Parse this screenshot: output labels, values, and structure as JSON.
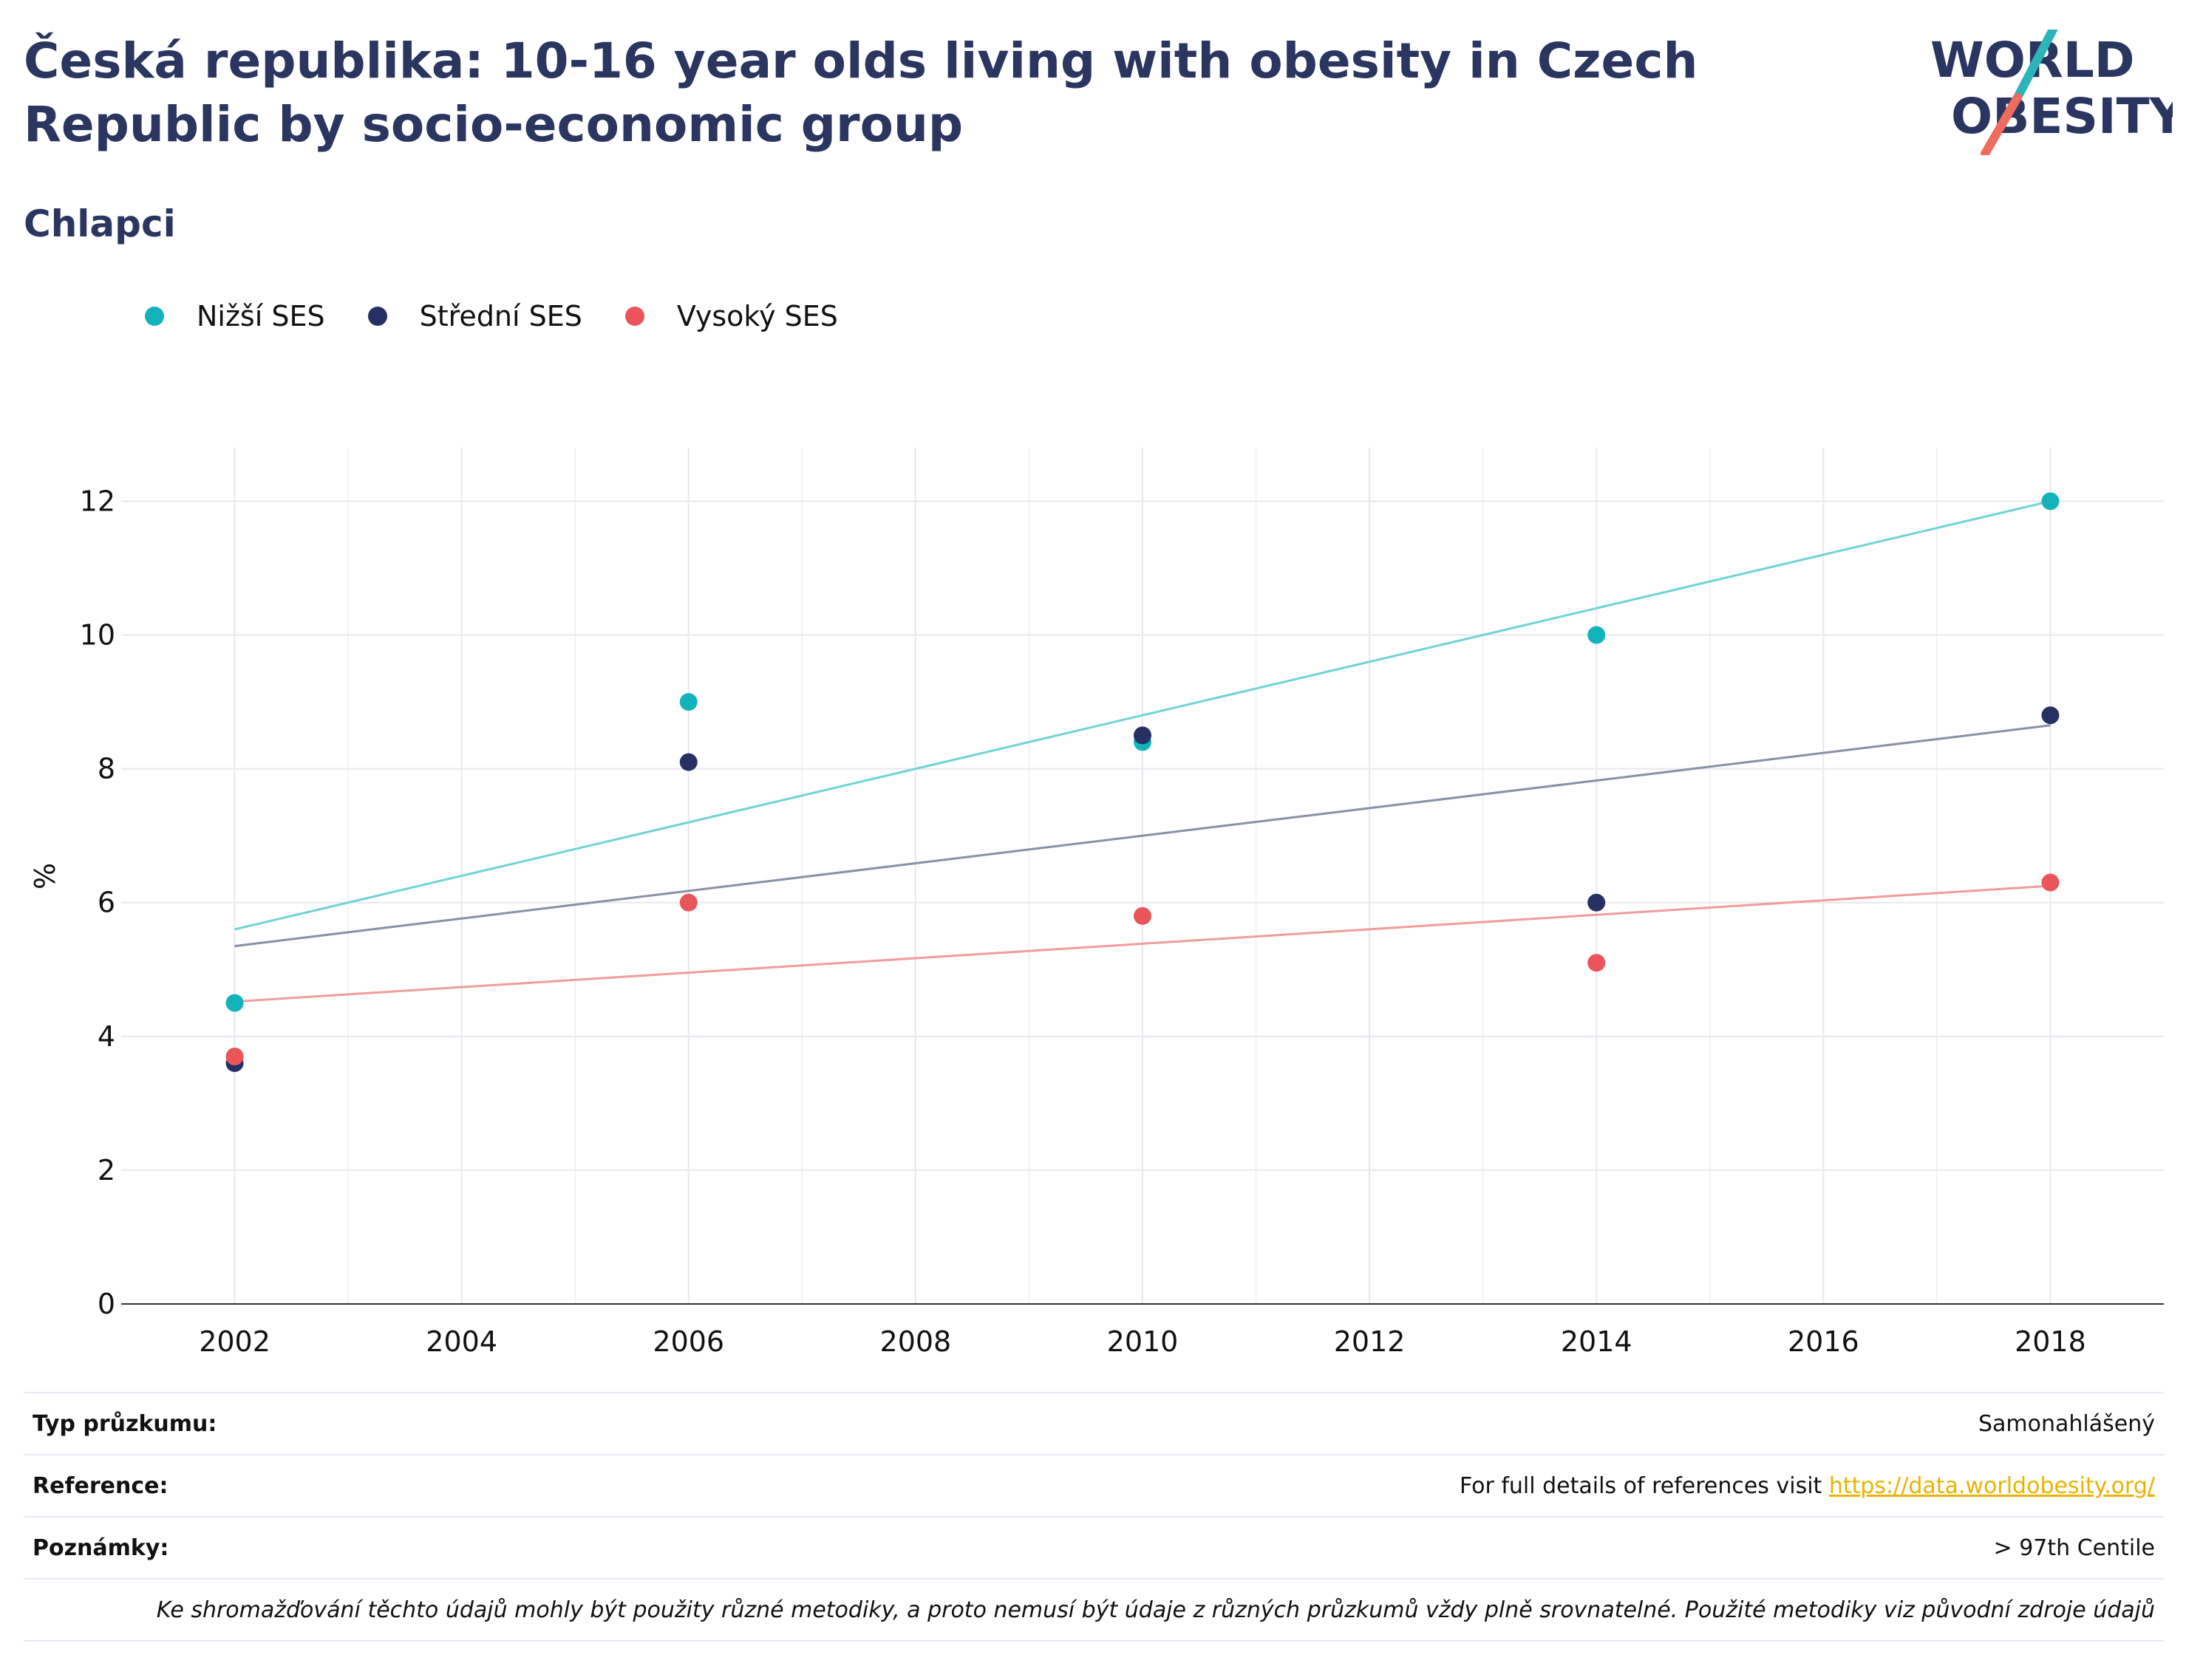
{
  "header": {
    "title": "Česká republika: 10-16 year olds living with obesity in Czech Republic by socio-economic group",
    "subtitle": "Chlapci"
  },
  "logo": {
    "line1": "WORLD",
    "line2": "OBESITY",
    "colors": {
      "text": "#2a3560",
      "slash_top": "#2bb5b8",
      "slash_bottom": "#ee6b5e"
    }
  },
  "legend": [
    {
      "label": "Nižší SES",
      "color": "#12b3bb"
    },
    {
      "label": "Střední SES",
      "color": "#263063"
    },
    {
      "label": "Vysoký SES",
      "color": "#e95559"
    }
  ],
  "chart_data": {
    "type": "scatter",
    "ylabel": "%",
    "xlim": [
      2001,
      2019
    ],
    "ylim": [
      0,
      12.8
    ],
    "xticks": [
      2002,
      2004,
      2006,
      2008,
      2010,
      2012,
      2014,
      2016,
      2018
    ],
    "yticks": [
      0,
      2,
      4,
      6,
      8,
      10,
      12
    ],
    "grid": true,
    "legend_position": "top-left",
    "series": [
      {
        "name": "Nižší SES",
        "color": "#12b3bb",
        "trend_color": "#6fd3d6",
        "x": [
          2002,
          2006,
          2010,
          2014,
          2018
        ],
        "y": [
          4.5,
          9.0,
          8.4,
          10.0,
          12.0
        ],
        "trend": [
          [
            2002,
            5.6
          ],
          [
            2018,
            12.0
          ]
        ]
      },
      {
        "name": "Střední SES",
        "color": "#263063",
        "trend_color": "#8a90a6",
        "x": [
          2002,
          2006,
          2010,
          2014,
          2018
        ],
        "y": [
          3.6,
          8.1,
          8.5,
          6.0,
          8.8
        ],
        "trend": [
          [
            2002,
            5.35
          ],
          [
            2018,
            8.65
          ]
        ]
      },
      {
        "name": "Vysoký SES",
        "color": "#e95559",
        "trend_color": "#f29c9c",
        "x": [
          2002,
          2006,
          2010,
          2014,
          2018
        ],
        "y": [
          3.7,
          6.0,
          5.8,
          5.1,
          6.3
        ],
        "trend": [
          [
            2002,
            4.52
          ],
          [
            2018,
            6.25
          ]
        ]
      }
    ]
  },
  "footer": {
    "survey_type_label": "Typ průzkumu:",
    "survey_type_value": "Samonahlášený",
    "reference_label": "Reference:",
    "reference_text": "For full details of references visit ",
    "reference_link": "https://data.worldobesity.org/",
    "notes_label": "Poznámky:",
    "notes_value": "> 97th Centile",
    "disclaimer": "Ke shromažďování těchto údajů mohly být použity různé metodiky, a proto nemusí být údaje z různých průzkumů vždy plně srovnatelné. Použité metodiky viz původní zdroje údajů"
  }
}
